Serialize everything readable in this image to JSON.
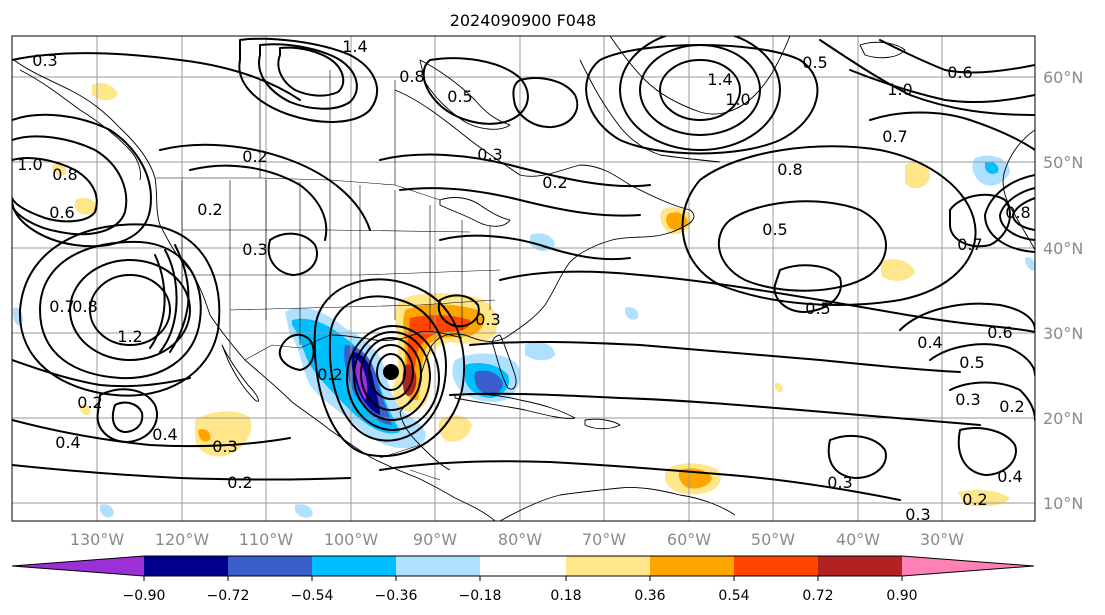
{
  "title": "2024090900 F048",
  "lon_labels": [
    "130°W",
    "120°W",
    "110°W",
    "100°W",
    "90°W",
    "80°W",
    "70°W",
    "60°W",
    "50°W",
    "40°W",
    "30°W"
  ],
  "lat_labels": [
    "60°N",
    "50°N",
    "40°N",
    "30°N",
    "20°N",
    "10°N"
  ],
  "colorbar": {
    "ticks": [
      "−0.90",
      "−0.72",
      "−0.54",
      "−0.36",
      "−0.18",
      "0.18",
      "0.36",
      "0.54",
      "0.72",
      "0.90"
    ],
    "colors": [
      "#9b30d6",
      "#00008b",
      "#3a5fcd",
      "#00bfff",
      "#b0e0ff",
      "#ffffff",
      "#ffe68a",
      "#ffa500",
      "#ff4500",
      "#b22222",
      "#ff80b4"
    ]
  },
  "contour_labels": [
    "0.3",
    "0.2",
    "0.4",
    "0.5",
    "0.6",
    "0.7",
    "0.8",
    "1.0",
    "1.2",
    "1.4"
  ],
  "map": {
    "projection": "PlateCarree",
    "lon_range": [
      -137,
      -16
    ],
    "lat_range": [
      7,
      65
    ],
    "features": [
      "coastlines",
      "country borders",
      "US state borders",
      "gridlines"
    ],
    "central_low": {
      "lon": -95,
      "lat": 25
    }
  }
}
